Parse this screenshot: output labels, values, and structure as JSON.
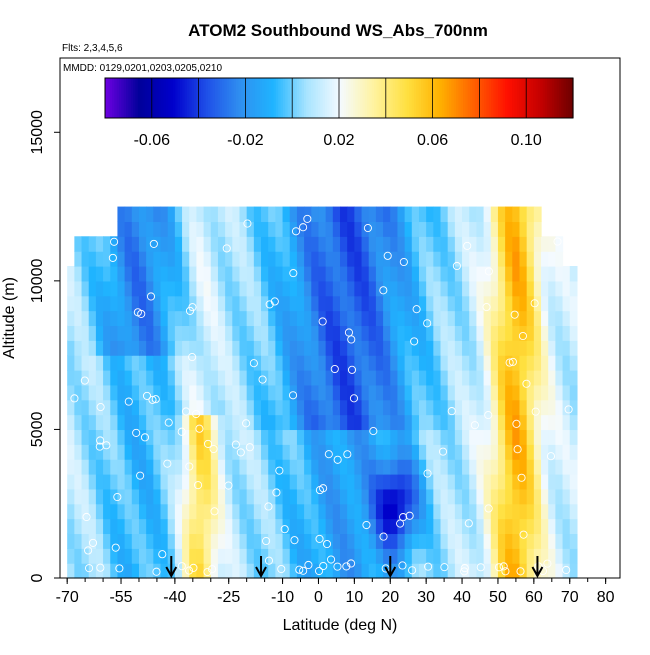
{
  "chart_data": {
    "type": "heatmap",
    "title": "ATOM2 Southbound WS_Abs_700nm",
    "subtitle_flights": "Flts: 2,3,4,5,6",
    "subtitle_dates": "MMDD: 0129,0201,0203,0205,0210",
    "xlabel": "Latitude (deg N)",
    "ylabel": "Altitude (m)",
    "xlim": [
      -70,
      80
    ],
    "ylim": [
      0,
      17500
    ],
    "x_ticks": [
      -70,
      -55,
      -40,
      -25,
      -10,
      0,
      10,
      20,
      30,
      40,
      50,
      60,
      70,
      80
    ],
    "y_ticks": [
      0,
      5000,
      10000,
      15000
    ],
    "x_tick_labels": [
      "-70",
      "-55",
      "-40",
      "-25",
      "-10",
      "0",
      "10",
      "20",
      "30",
      "40",
      "50",
      "60",
      "70",
      "80"
    ],
    "y_tick_labels": [
      "0",
      "5000",
      "10000",
      "15000"
    ],
    "colorbar": {
      "range": [
        -0.08,
        0.12
      ],
      "ticks": [
        -0.06,
        -0.02,
        0.02,
        0.06,
        0.1
      ],
      "tick_labels": [
        "-0.06",
        "-0.02",
        "0.02",
        "0.06",
        "0.10"
      ],
      "colors": [
        "#6a00e0",
        "#00009a",
        "#0000cc",
        "#1f4fe8",
        "#2f8ff0",
        "#1fb4ff",
        "#a8e4ff",
        "#f4faff",
        "#fff3a0",
        "#ffe040",
        "#ffb000",
        "#ff6000",
        "#ff1000",
        "#c40000",
        "#6a0000"
      ]
    },
    "profile_latitudes": [
      -41,
      -16,
      20,
      61
    ],
    "altitude_bins_m": [
      250,
      750,
      1250,
      1750,
      2250,
      2750,
      3250,
      3750,
      4250,
      4750,
      5250,
      5750,
      6250,
      6750,
      7250,
      7750,
      8250,
      8750,
      9250,
      9750,
      10250,
      10750,
      11250,
      11750,
      12250
    ],
    "grid": false
  }
}
